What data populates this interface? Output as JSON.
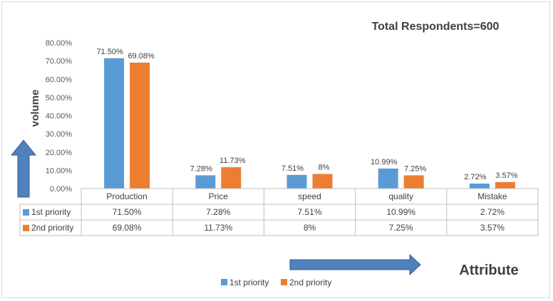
{
  "chart_data": {
    "type": "bar",
    "title": "Total Respondents=600",
    "xlabel": "Attribute",
    "ylabel": "volume",
    "ylim": [
      0,
      80
    ],
    "y_ticks": [
      "0.00%",
      "10.00%",
      "20.00%",
      "30.00%",
      "40.00%",
      "50.00%",
      "60.00%",
      "70.00%",
      "80.00%"
    ],
    "categories": [
      "Production",
      "Price",
      "speed",
      "quality",
      "Mistake"
    ],
    "series": [
      {
        "name": "1st priority",
        "color": "#5b9bd5",
        "values": [
          71.5,
          7.28,
          7.51,
          10.99,
          2.72
        ],
        "labels": [
          "71.50%",
          "7.28%",
          "7.51%",
          "10.99%",
          "2.72%"
        ]
      },
      {
        "name": "2nd priority",
        "color": "#ed7d31",
        "values": [
          69.08,
          11.73,
          8,
          7.25,
          3.57
        ],
        "labels": [
          "69.08%",
          "11.73%",
          "8%",
          "7.25%",
          "3.57%"
        ]
      }
    ],
    "legend": "bottom",
    "data_table": true
  },
  "colors": {
    "arrow_fill": "#4f81bd",
    "arrow_stroke": "#385d8a"
  }
}
